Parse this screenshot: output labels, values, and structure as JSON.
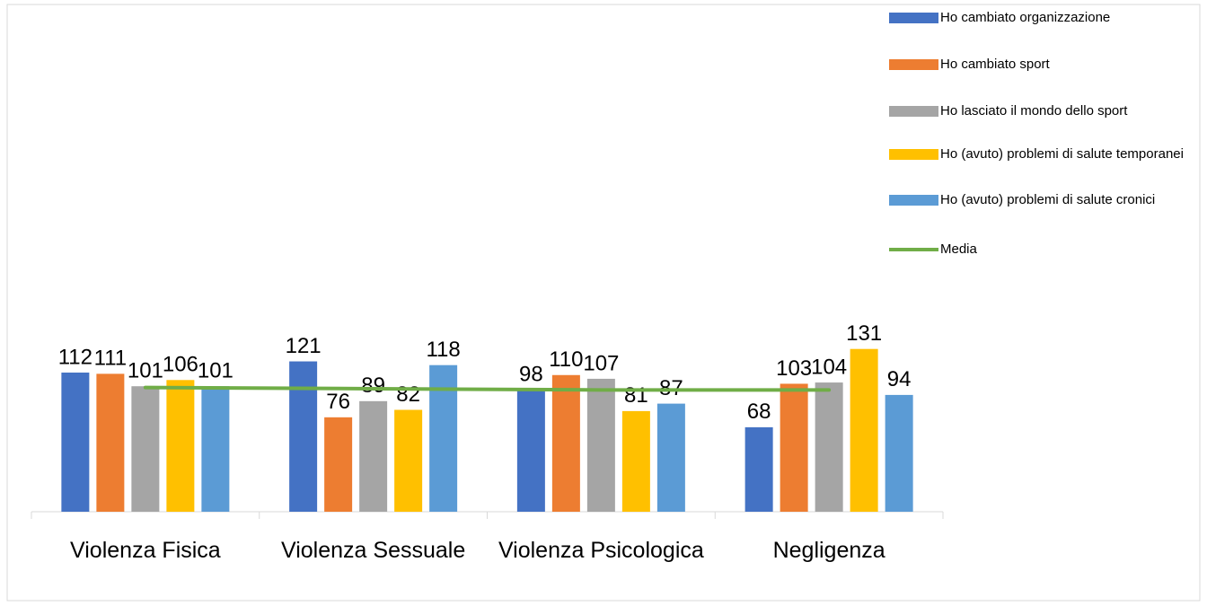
{
  "chart_data": {
    "type": "bar",
    "categories": [
      "Violenza Fisica",
      "Violenza Sessuale",
      "Violenza Psicologica",
      "Negligenza"
    ],
    "series": [
      {
        "name": "Ho cambiato organizzazione",
        "color": "#4472c4",
        "values": [
          112,
          121,
          98,
          68
        ]
      },
      {
        "name": "Ho cambiato sport",
        "color": "#ed7d31",
        "values": [
          111,
          76,
          110,
          103
        ]
      },
      {
        "name": "Ho lasciato il mondo dello sport",
        "color": "#a5a5a5",
        "values": [
          101,
          89,
          107,
          104
        ]
      },
      {
        "name": "Ho (avuto) problemi di salute temporanei",
        "color": "#ffc000",
        "values": [
          106,
          82,
          81,
          131
        ]
      },
      {
        "name": "Ho (avuto) problemi di salute cronici",
        "color": "#5b9bd5",
        "values": [
          101,
          118,
          87,
          94
        ]
      },
      {
        "name": "Media",
        "type": "line",
        "color": "#70ad47",
        "values": [
          100,
          99,
          98,
          98
        ]
      }
    ],
    "legend": "right"
  }
}
